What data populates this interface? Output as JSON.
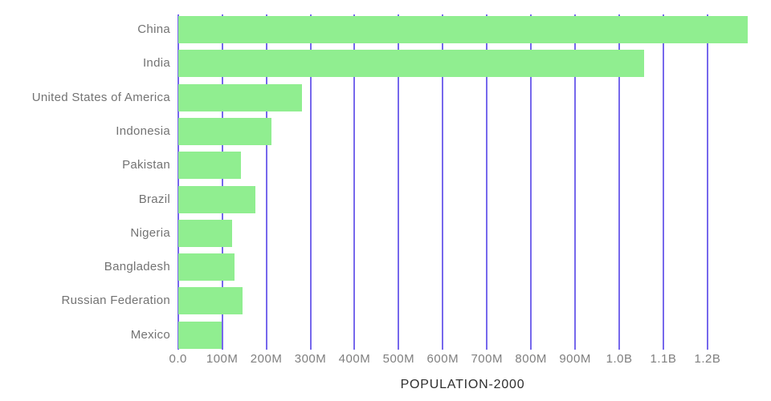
{
  "chart_data": {
    "type": "bar",
    "orientation": "horizontal",
    "title": "POPULATION-2000",
    "categories": [
      "China",
      "India",
      "United States of America",
      "Indonesia",
      "Pakistan",
      "Brazil",
      "Nigeria",
      "Bangladesh",
      "Russian Federation",
      "Mexico"
    ],
    "values_millions": [
      1290.6,
      1056.6,
      281.7,
      211.5,
      142.3,
      174.8,
      122.3,
      127.7,
      146.4,
      98.9
    ],
    "series": [
      {
        "name": "Population in 2000",
        "values": [
          1290.6,
          1056.6,
          281.7,
          211.5,
          142.3,
          174.8,
          122.3,
          127.7,
          146.4,
          98.9
        ]
      }
    ],
    "xlabel": "POPULATION-2000",
    "ylabel": "",
    "xlim_millions": [
      0,
      1290.6
    ],
    "grid": true,
    "legend_position": "none",
    "x_ticks": [
      {
        "label": "0.0",
        "value_millions": 0
      },
      {
        "label": "100M",
        "value_millions": 100
      },
      {
        "label": "200M",
        "value_millions": 200
      },
      {
        "label": "300M",
        "value_millions": 300
      },
      {
        "label": "400M",
        "value_millions": 400
      },
      {
        "label": "500M",
        "value_millions": 500
      },
      {
        "label": "600M",
        "value_millions": 600
      },
      {
        "label": "700M",
        "value_millions": 700
      },
      {
        "label": "800M",
        "value_millions": 800
      },
      {
        "label": "900M",
        "value_millions": 900
      },
      {
        "label": "1.0B",
        "value_millions": 1000
      },
      {
        "label": "1.1B",
        "value_millions": 1100
      },
      {
        "label": "1.2B",
        "value_millions": 1200
      }
    ],
    "colors": {
      "bar": "#90ee90",
      "gridline": "#7668ec",
      "category_label": "#737373",
      "tick_label": "#7f7f7f",
      "title": "#2e2e2e",
      "background": "#ffffff"
    }
  }
}
